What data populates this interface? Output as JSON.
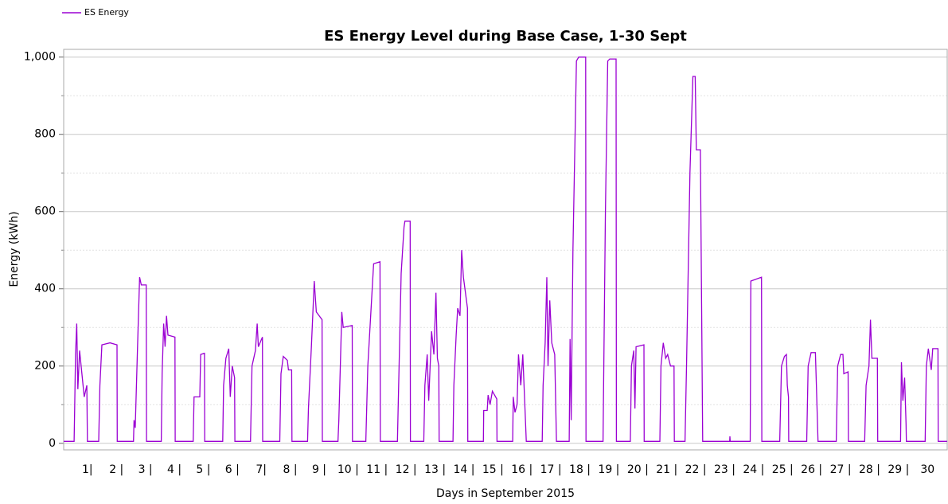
{
  "chart_data": {
    "type": "line",
    "title": "ES Energy Level during Base Case, 1-30 Sept",
    "x_label": "Days in September 2015",
    "y_label": "Energy (kWh)",
    "day_labels": [
      "1|",
      "2 |",
      "3 |",
      "4 |",
      "5 |",
      "6 |",
      "7|",
      "8 |",
      "9 |",
      "10 |",
      "11 |",
      "12 |",
      "13 |",
      "14 |",
      "15 |",
      "16 |",
      "17 |",
      "18 |",
      "19 |",
      "20 |",
      "21 |",
      "22 |",
      "23 |",
      "24 |",
      "25 |",
      "26 |",
      "27 |",
      "28 |",
      "29 |",
      "30"
    ],
    "xlim": [
      0,
      30.5
    ],
    "ylim": [
      -17,
      1020
    ],
    "yticks": [
      0,
      200,
      400,
      600,
      800,
      {
        "value": 1000,
        "label": "1,000"
      }
    ],
    "minor_yticks": [
      100,
      300,
      500,
      700,
      900
    ],
    "grid": true,
    "legend": "top-left",
    "series": [
      {
        "name": "ES Energy",
        "color": "#9b00d3",
        "x": [
          0,
          0.36,
          0.38,
          0.41,
          0.45,
          0.49,
          0.55,
          0.63,
          0.71,
          0.8,
          0.82,
          1.21,
          1.25,
          1.32,
          1.6,
          1.84,
          1.85,
          2.41,
          2.43,
          2.47,
          2.55,
          2.62,
          2.68,
          2.85,
          2.86,
          3.37,
          3.4,
          3.45,
          3.5,
          3.55,
          3.6,
          3.84,
          3.85,
          4.47,
          4.5,
          4.7,
          4.73,
          4.86,
          4.87,
          5.49,
          5.52,
          5.6,
          5.7,
          5.75,
          5.82,
          5.9,
          5.91,
          6.45,
          6.5,
          6.62,
          6.68,
          6.72,
          6.86,
          6.87,
          7.46,
          7.5,
          7.58,
          7.72,
          7.76,
          7.87,
          7.88,
          8.42,
          8.45,
          8.55,
          8.65,
          8.72,
          8.92,
          8.93,
          9.47,
          9.5,
          9.6,
          9.65,
          9.96,
          9.97,
          10.43,
          10.5,
          10.7,
          10.92,
          10.93,
          11.52,
          11.55,
          11.65,
          11.75,
          11.78,
          11.96,
          11.97,
          12.43,
          12.47,
          12.55,
          12.6,
          12.7,
          12.78,
          12.85,
          12.9,
          12.95,
          12.96,
          13.44,
          13.47,
          13.55,
          13.6,
          13.68,
          13.74,
          13.8,
          13.94,
          13.95,
          14.49,
          14.5,
          14.62,
          14.65,
          14.72,
          14.8,
          14.95,
          14.96,
          15.5,
          15.52,
          15.58,
          15.65,
          15.7,
          15.78,
          15.85,
          15.97,
          16.52,
          16.55,
          16.62,
          16.68,
          16.72,
          16.78,
          16.85,
          16.95,
          17.01,
          17.45,
          17.48,
          17.52,
          17.58,
          17.7,
          17.78,
          18.02,
          18.03,
          18.62,
          18.7,
          18.78,
          18.85,
          19.07,
          19.08,
          19.56,
          19.6,
          19.68,
          19.72,
          19.76,
          20.03,
          20.04,
          20.58,
          20.62,
          20.7,
          20.78,
          20.85,
          20.95,
          21.07,
          21.08,
          21.45,
          21.5,
          21.62,
          21.72,
          21.8,
          21.84,
          21.98,
          22.06,
          22.99,
          23,
          23.01,
          23.7,
          23.72,
          24.09,
          24.1,
          24.72,
          24.78,
          24.88,
          24.95,
          24.98,
          25.02,
          25.03,
          25.65,
          25.7,
          25.8,
          25.95,
          25.98,
          26.04,
          26.67,
          26.72,
          26.82,
          26.9,
          26.93,
          27.08,
          27.09,
          27.65,
          27.7,
          27.8,
          27.85,
          27.9,
          28.09,
          28.1,
          28.89,
          28.92,
          28.97,
          29.03,
          29.08,
          29.09,
          29.74,
          29.78,
          29.85,
          29.95,
          30,
          30.18,
          30.19,
          30.5
        ],
        "values": [
          5,
          5,
          90,
          230,
          310,
          140,
          240,
          180,
          120,
          150,
          5,
          5,
          150,
          255,
          260,
          255,
          5,
          5,
          60,
          40,
          250,
          430,
          410,
          410,
          5,
          5,
          180,
          310,
          250,
          330,
          280,
          275,
          5,
          5,
          120,
          120,
          230,
          233,
          5,
          5,
          150,
          220,
          245,
          120,
          200,
          170,
          5,
          5,
          200,
          240,
          310,
          250,
          275,
          5,
          5,
          180,
          225,
          215,
          190,
          190,
          5,
          5,
          90,
          250,
          420,
          340,
          320,
          5,
          5,
          60,
          340,
          300,
          305,
          5,
          5,
          200,
          465,
          470,
          5,
          5,
          100,
          440,
          560,
          575,
          575,
          5,
          5,
          150,
          230,
          110,
          290,
          230,
          390,
          220,
          200,
          5,
          5,
          150,
          280,
          350,
          330,
          500,
          430,
          350,
          5,
          5,
          85,
          85,
          125,
          100,
          135,
          115,
          5,
          5,
          120,
          80,
          100,
          230,
          150,
          230,
          5,
          5,
          150,
          260,
          430,
          200,
          370,
          260,
          230,
          5,
          5,
          270,
          60,
          500,
          990,
          1000,
          1000,
          5,
          5,
          600,
          990,
          995,
          995,
          5,
          5,
          200,
          240,
          90,
          250,
          255,
          5,
          5,
          200,
          260,
          220,
          230,
          200,
          200,
          5,
          5,
          200,
          700,
          950,
          950,
          760,
          760,
          5,
          5,
          18,
          5,
          5,
          420,
          430,
          5,
          5,
          200,
          225,
          230,
          150,
          120,
          5,
          5,
          200,
          235,
          235,
          160,
          5,
          5,
          200,
          230,
          230,
          180,
          185,
          5,
          5,
          150,
          200,
          320,
          220,
          220,
          5,
          5,
          210,
          110,
          170,
          50,
          5,
          5,
          200,
          245,
          190,
          245,
          245,
          5,
          5
        ]
      }
    ]
  }
}
